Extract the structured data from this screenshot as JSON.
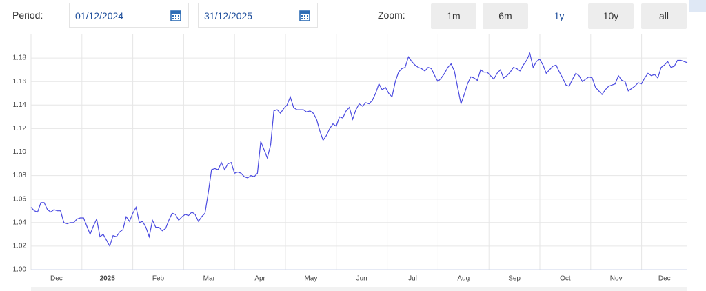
{
  "controls": {
    "period_label": "Period:",
    "start_date": "01/12/2024",
    "end_date": "31/12/2025",
    "zoom_label": "Zoom:",
    "zoom_buttons": [
      "1m",
      "6m",
      "1y",
      "10y",
      "all"
    ],
    "selected_zoom": 2
  },
  "chart_data": {
    "type": "line",
    "color": "#4a4ae0",
    "grid": true,
    "months": [
      "Dec",
      "2025",
      "Feb",
      "Mar",
      "Apr",
      "May",
      "Jun",
      "Jul",
      "Aug",
      "Sep",
      "Oct",
      "Nov",
      "Dec"
    ],
    "ylim": [
      1.0,
      1.2
    ],
    "yticks": [
      {
        "value": 1.0,
        "label": "1.00"
      },
      1.02,
      1.04,
      1.06,
      1.08,
      {
        "value": 1.1,
        "label": "1.10"
      },
      1.12,
      1.14,
      1.16,
      1.18
    ],
    "values": [
      1.053,
      1.05,
      1.049,
      1.057,
      1.057,
      1.051,
      1.049,
      1.051,
      1.05,
      1.05,
      1.04,
      1.039,
      1.04,
      1.04,
      1.043,
      1.044,
      1.044,
      1.037,
      1.03,
      1.037,
      1.043,
      1.028,
      1.03,
      1.025,
      1.02,
      1.029,
      1.028,
      1.032,
      1.034,
      1.045,
      1.041,
      1.048,
      1.053,
      1.04,
      1.041,
      1.036,
      1.028,
      1.042,
      1.036,
      1.036,
      1.033,
      1.035,
      1.042,
      1.048,
      1.047,
      1.042,
      1.045,
      1.047,
      1.046,
      1.049,
      1.047,
      1.041,
      1.045,
      1.048,
      1.065,
      1.085,
      1.086,
      1.085,
      1.091,
      1.085,
      1.09,
      1.091,
      1.082,
      1.083,
      1.082,
      1.079,
      1.078,
      1.08,
      1.079,
      1.082,
      1.109,
      1.102,
      1.095,
      1.106,
      1.135,
      1.136,
      1.133,
      1.137,
      1.14,
      1.147,
      1.138,
      1.136,
      1.136,
      1.136,
      1.134,
      1.135,
      1.133,
      1.128,
      1.118,
      1.11,
      1.114,
      1.12,
      1.124,
      1.122,
      1.13,
      1.129,
      1.135,
      1.138,
      1.128,
      1.136,
      1.141,
      1.139,
      1.142,
      1.141,
      1.144,
      1.15,
      1.158,
      1.153,
      1.155,
      1.15,
      1.147,
      1.16,
      1.168,
      1.171,
      1.172,
      1.181,
      1.177,
      1.174,
      1.172,
      1.171,
      1.169,
      1.172,
      1.171,
      1.165,
      1.16,
      1.163,
      1.167,
      1.172,
      1.175,
      1.169,
      1.155,
      1.141,
      1.149,
      1.158,
      1.164,
      1.163,
      1.161,
      1.17,
      1.168,
      1.168,
      1.165,
      1.162,
      1.167,
      1.17,
      1.163,
      1.165,
      1.168,
      1.172,
      1.171,
      1.169,
      1.174,
      1.178,
      1.184,
      1.172,
      1.177,
      1.179,
      1.174,
      1.167,
      1.17,
      1.173,
      1.174,
      1.168,
      1.163,
      1.157,
      1.156,
      1.162,
      1.167,
      1.165,
      1.16,
      1.162,
      1.164,
      1.163,
      1.155,
      1.152,
      1.149,
      1.153,
      1.156,
      1.157,
      1.158,
      1.165,
      1.161,
      1.16,
      1.152,
      1.154,
      1.156,
      1.159,
      1.158,
      1.163,
      1.167,
      1.165,
      1.166,
      1.163,
      1.172,
      1.174,
      1.177,
      1.172,
      1.173,
      1.178,
      1.178,
      1.177,
      1.176
    ]
  }
}
